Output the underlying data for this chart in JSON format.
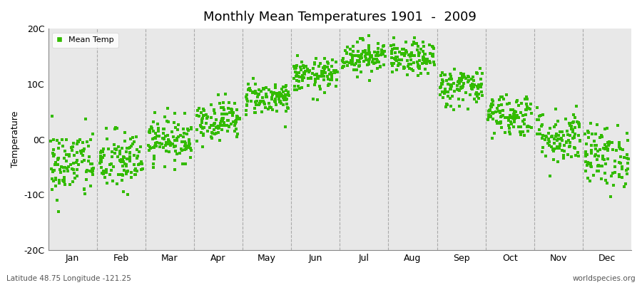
{
  "title": "Monthly Mean Temperatures 1901  -  2009",
  "ylabel": "Temperature",
  "xlabel_months": [
    "Jan",
    "Feb",
    "Mar",
    "Apr",
    "May",
    "Jun",
    "Jul",
    "Aug",
    "Sep",
    "Oct",
    "Nov",
    "Dec"
  ],
  "footer_left": "Latitude 48.75 Longitude -121.25",
  "footer_right": "worldspecies.org",
  "legend_label": "Mean Temp",
  "ylim": [
    -20,
    20
  ],
  "yticks": [
    -20,
    -10,
    0,
    10,
    20
  ],
  "ytick_labels": [
    "-20C",
    "-10C",
    "0C",
    "10C",
    "20C"
  ],
  "dot_color": "#33bb00",
  "dot_size": 5,
  "fig_bg_color": "#ffffff",
  "plot_bg_color": "#e8e8e8",
  "monthly_means": [
    -4.5,
    -4.0,
    0.0,
    3.5,
    7.5,
    11.5,
    15.0,
    14.5,
    9.5,
    4.5,
    0.5,
    -3.0
  ],
  "monthly_stds": [
    3.2,
    2.8,
    2.0,
    1.8,
    1.5,
    1.5,
    1.5,
    1.5,
    1.8,
    2.0,
    2.5,
    2.8
  ],
  "n_years": 109,
  "seed": 42
}
